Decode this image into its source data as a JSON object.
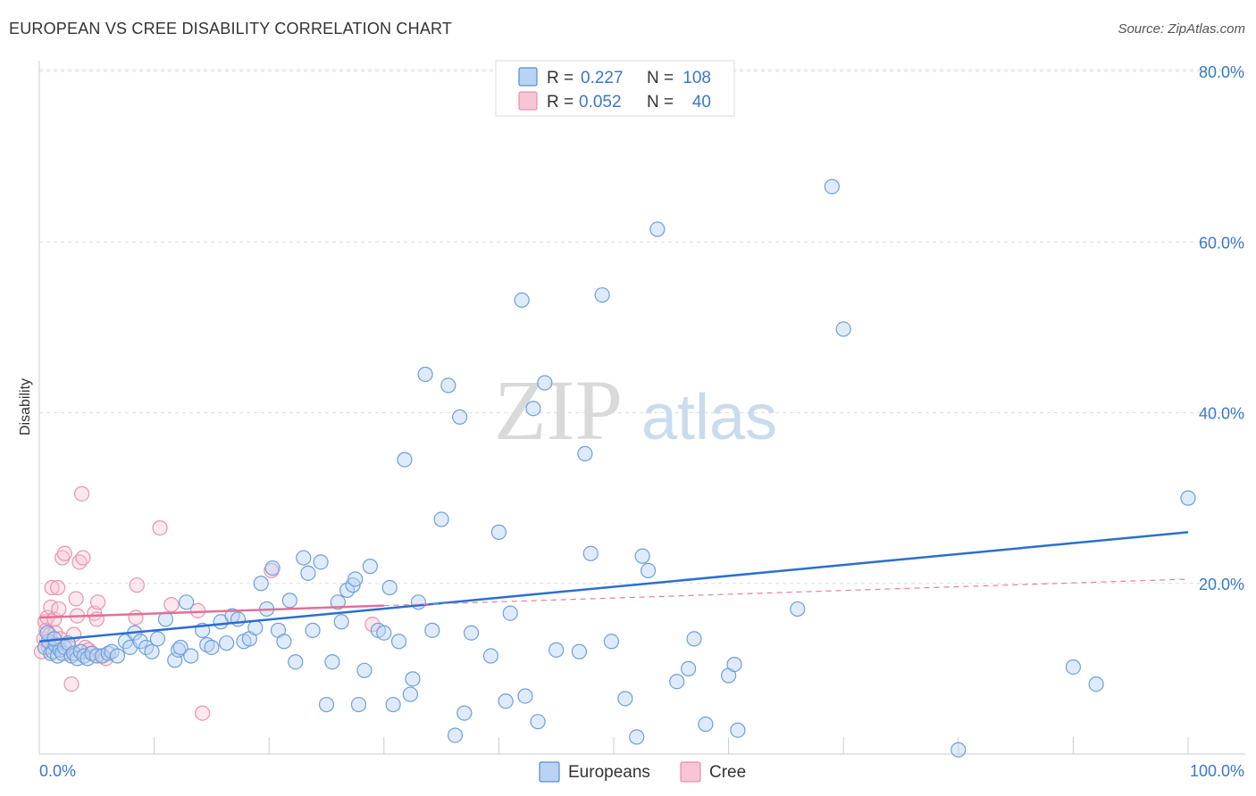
{
  "title": "EUROPEAN VS CREE DISABILITY CORRELATION CHART",
  "source": "Source: ZipAtlas.com",
  "watermark": {
    "zip": "ZIP",
    "atlas": "atlas"
  },
  "colors": {
    "blue": "#3a78c8",
    "blue_fill": "#b8d3f3",
    "pink": "#e87ca0",
    "pink_fill": "#f8c5d5",
    "grid": "#dddddd",
    "tick_text": "#3a78c8"
  },
  "legend": {
    "rows": [
      {
        "r_label": "R =",
        "r_value": "0.227",
        "n_label": "N =",
        "n_value": "108"
      },
      {
        "r_label": "R =",
        "r_value": "0.052",
        "n_label": "N =",
        "n_value": "40"
      }
    ]
  },
  "bottom_legend": [
    "Europeans",
    "Cree"
  ],
  "chart_data": {
    "type": "scatter",
    "title": "EUROPEAN VS CREE DISABILITY CORRELATION CHART",
    "xlabel": "",
    "ylabel": "Disability",
    "xlim": [
      0,
      100
    ],
    "ylim": [
      0,
      80
    ],
    "x_tick_labels": [
      "0.0%",
      "100.0%"
    ],
    "y_ticks": [
      20,
      40,
      60,
      80
    ],
    "y_tick_labels": [
      "20.0%",
      "40.0%",
      "60.0%",
      "80.0%"
    ],
    "grid": "horizontal dashed",
    "legend_position": "top-center",
    "series": [
      {
        "name": "Europeans",
        "color": "#3a78c8",
        "r": 0.227,
        "n": 108,
        "trend": {
          "x": [
            0,
            100
          ],
          "y": [
            13.2,
            26.0
          ]
        },
        "points": [
          [
            0.5,
            12.5
          ],
          [
            0.8,
            13.2
          ],
          [
            1.0,
            11.8
          ],
          [
            1.2,
            12.0
          ],
          [
            1.4,
            12.8
          ],
          [
            1.6,
            11.5
          ],
          [
            1.8,
            12.2
          ],
          [
            2.0,
            11.8
          ],
          [
            2.2,
            12.5
          ],
          [
            2.5,
            13.0
          ],
          [
            2.8,
            11.5
          ],
          [
            3.0,
            11.8
          ],
          [
            3.3,
            11.2
          ],
          [
            3.6,
            12.0
          ],
          [
            3.9,
            11.5
          ],
          [
            4.2,
            11.2
          ],
          [
            4.6,
            11.8
          ],
          [
            5.0,
            11.5
          ],
          [
            5.5,
            11.5
          ],
          [
            6.0,
            11.8
          ],
          [
            0.7,
            14.2
          ],
          [
            1.3,
            13.5
          ],
          [
            6.3,
            12.0
          ],
          [
            6.8,
            11.5
          ],
          [
            7.5,
            13.2
          ],
          [
            7.9,
            12.5
          ],
          [
            8.3,
            14.2
          ],
          [
            8.8,
            13.2
          ],
          [
            9.3,
            12.5
          ],
          [
            9.8,
            12.0
          ],
          [
            10.3,
            13.5
          ],
          [
            11.0,
            15.8
          ],
          [
            11.8,
            11.0
          ],
          [
            12.1,
            12.2
          ],
          [
            12.3,
            12.5
          ],
          [
            12.8,
            17.8
          ],
          [
            13.2,
            11.5
          ],
          [
            14.2,
            14.5
          ],
          [
            14.6,
            12.8
          ],
          [
            15.0,
            12.5
          ],
          [
            15.8,
            15.5
          ],
          [
            16.3,
            13.0
          ],
          [
            16.8,
            16.2
          ],
          [
            17.3,
            15.8
          ],
          [
            17.8,
            13.2
          ],
          [
            18.3,
            13.5
          ],
          [
            18.8,
            14.8
          ],
          [
            19.3,
            20.0
          ],
          [
            19.8,
            17.0
          ],
          [
            20.3,
            21.8
          ],
          [
            20.8,
            14.5
          ],
          [
            21.3,
            13.2
          ],
          [
            21.8,
            18.0
          ],
          [
            22.3,
            10.8
          ],
          [
            23.0,
            23.0
          ],
          [
            23.4,
            21.2
          ],
          [
            23.8,
            14.5
          ],
          [
            24.5,
            22.5
          ],
          [
            25.0,
            5.8
          ],
          [
            25.5,
            10.8
          ],
          [
            26.0,
            17.8
          ],
          [
            26.3,
            15.5
          ],
          [
            26.8,
            19.2
          ],
          [
            27.3,
            19.8
          ],
          [
            27.5,
            20.5
          ],
          [
            27.8,
            5.8
          ],
          [
            28.3,
            9.8
          ],
          [
            28.8,
            22.0
          ],
          [
            29.5,
            14.5
          ],
          [
            30.0,
            14.2
          ],
          [
            30.5,
            19.5
          ],
          [
            30.8,
            5.8
          ],
          [
            31.3,
            13.2
          ],
          [
            31.8,
            34.5
          ],
          [
            32.3,
            7.0
          ],
          [
            32.5,
            8.8
          ],
          [
            33.0,
            17.8
          ],
          [
            33.6,
            44.5
          ],
          [
            34.2,
            14.5
          ],
          [
            35.0,
            27.5
          ],
          [
            35.6,
            43.2
          ],
          [
            36.2,
            2.2
          ],
          [
            36.6,
            39.5
          ],
          [
            37.0,
            4.8
          ],
          [
            37.6,
            14.2
          ],
          [
            39.3,
            11.5
          ],
          [
            40.0,
            26.0
          ],
          [
            40.6,
            6.2
          ],
          [
            41.0,
            16.5
          ],
          [
            42.0,
            53.2
          ],
          [
            42.3,
            6.8
          ],
          [
            43.0,
            40.5
          ],
          [
            43.4,
            3.8
          ],
          [
            44.0,
            43.5
          ],
          [
            45.0,
            12.2
          ],
          [
            47.0,
            12.0
          ],
          [
            47.5,
            35.2
          ],
          [
            48.0,
            23.5
          ],
          [
            49.0,
            53.8
          ],
          [
            49.8,
            13.2
          ],
          [
            51.0,
            6.5
          ],
          [
            52.0,
            2.0
          ],
          [
            52.5,
            23.2
          ],
          [
            53.0,
            21.5
          ],
          [
            53.8,
            61.5
          ],
          [
            55.5,
            8.5
          ],
          [
            56.5,
            10.0
          ],
          [
            57.0,
            13.5
          ],
          [
            58.0,
            3.5
          ],
          [
            60.0,
            9.2
          ],
          [
            60.5,
            10.5
          ],
          [
            60.8,
            2.8
          ],
          [
            66.0,
            17.0
          ],
          [
            69.0,
            66.5
          ],
          [
            70.0,
            49.8
          ],
          [
            80.0,
            0.5
          ],
          [
            90.0,
            10.2
          ],
          [
            92.0,
            8.2
          ],
          [
            100.0,
            30.0
          ]
        ]
      },
      {
        "name": "Cree",
        "color": "#e87ca0",
        "r": 0.052,
        "n": 40,
        "trend": {
          "x": [
            0,
            30
          ],
          "y": [
            16.0,
            17.4
          ]
        },
        "trend_extended": {
          "x": [
            30,
            100
          ],
          "y": [
            17.4,
            20.5
          ]
        },
        "points": [
          [
            0.2,
            12.0
          ],
          [
            0.4,
            13.5
          ],
          [
            0.5,
            15.5
          ],
          [
            0.6,
            14.5
          ],
          [
            0.7,
            16.0
          ],
          [
            0.8,
            12.5
          ],
          [
            0.9,
            14.0
          ],
          [
            1.0,
            17.2
          ],
          [
            1.1,
            19.5
          ],
          [
            1.2,
            13.0
          ],
          [
            1.3,
            15.8
          ],
          [
            1.4,
            14.2
          ],
          [
            1.6,
            19.5
          ],
          [
            1.7,
            17.0
          ],
          [
            1.8,
            13.5
          ],
          [
            2.0,
            23.0
          ],
          [
            2.2,
            23.5
          ],
          [
            2.4,
            11.8
          ],
          [
            2.6,
            12.5
          ],
          [
            2.8,
            8.2
          ],
          [
            3.0,
            14.0
          ],
          [
            3.2,
            18.2
          ],
          [
            3.3,
            16.2
          ],
          [
            3.5,
            22.5
          ],
          [
            3.8,
            23.0
          ],
          [
            3.7,
            30.5
          ],
          [
            4.0,
            12.5
          ],
          [
            4.3,
            12.2
          ],
          [
            4.5,
            11.8
          ],
          [
            4.8,
            16.5
          ],
          [
            5.0,
            15.8
          ],
          [
            5.1,
            17.8
          ],
          [
            5.4,
            11.5
          ],
          [
            5.8,
            11.2
          ],
          [
            8.4,
            16.0
          ],
          [
            8.5,
            19.8
          ],
          [
            10.5,
            26.5
          ],
          [
            11.5,
            17.5
          ],
          [
            13.8,
            16.8
          ],
          [
            14.2,
            4.8
          ],
          [
            20.2,
            21.5
          ],
          [
            29.0,
            15.2
          ]
        ]
      }
    ]
  }
}
